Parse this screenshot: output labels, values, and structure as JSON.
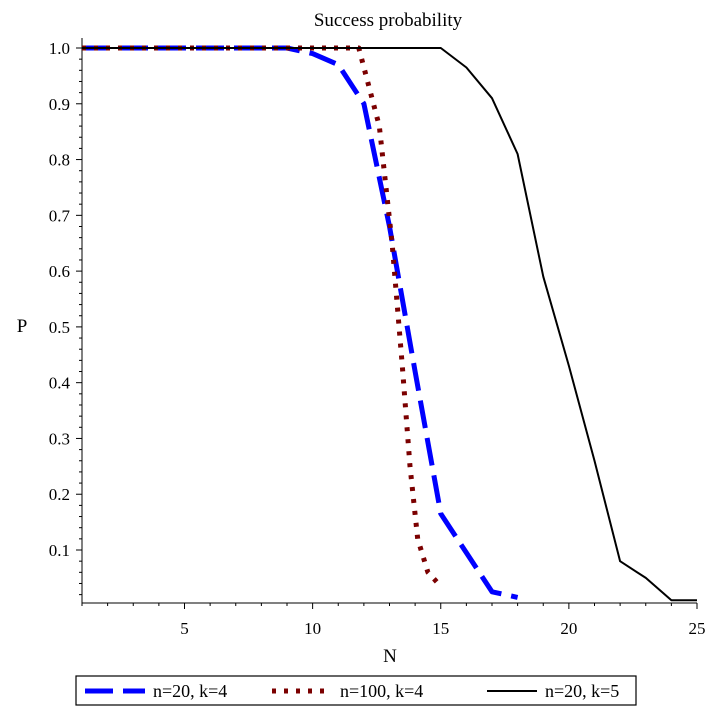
{
  "chart_data": {
    "type": "line",
    "title": "Success probability",
    "xlabel": "N",
    "ylabel": "P",
    "xlim": [
      1,
      25
    ],
    "ylim": [
      0.0,
      1.0
    ],
    "x_ticks": [
      5,
      10,
      15,
      20,
      25
    ],
    "y_ticks": [
      0.1,
      0.2,
      0.3,
      0.4,
      0.5,
      0.6,
      0.7,
      0.8,
      0.9,
      1.0
    ],
    "y_tick_labels": [
      "0.1",
      "0.2",
      "0.3",
      "0.4",
      "0.5",
      "0.6",
      "0.7",
      "0.8",
      "0.9",
      "1.0"
    ],
    "grid": false,
    "legend_position": "bottom",
    "series": [
      {
        "name": "n=20, k=4",
        "color": "#0000ff",
        "style": "dashed",
        "points": [
          [
            1,
            1.0
          ],
          [
            2,
            1.0
          ],
          [
            3,
            1.0
          ],
          [
            4,
            1.0
          ],
          [
            5,
            1.0
          ],
          [
            6,
            1.0
          ],
          [
            7,
            1.0
          ],
          [
            8,
            1.0
          ],
          [
            9,
            1.0
          ],
          [
            10,
            0.99
          ],
          [
            11,
            0.97
          ],
          [
            12,
            0.9
          ],
          [
            13,
            0.68
          ],
          [
            14,
            0.42
          ],
          [
            15,
            0.165
          ],
          [
            16,
            0.095
          ],
          [
            17,
            0.025
          ],
          [
            18,
            0.015
          ]
        ]
      },
      {
        "name": "n=100, k=4",
        "color": "#7b0000",
        "style": "dotted",
        "points": [
          [
            1,
            1.0
          ],
          [
            2,
            1.0
          ],
          [
            3,
            1.0
          ],
          [
            4,
            1.0
          ],
          [
            5,
            1.0
          ],
          [
            6,
            1.0
          ],
          [
            7,
            1.0
          ],
          [
            8,
            1.0
          ],
          [
            9,
            1.0
          ],
          [
            10,
            1.0
          ],
          [
            11,
            1.0
          ],
          [
            11.8,
            1.0
          ],
          [
            12.6,
            0.86
          ],
          [
            13.1,
            0.65
          ],
          [
            13.5,
            0.43
          ],
          [
            13.8,
            0.25
          ],
          [
            14.1,
            0.12
          ],
          [
            14.5,
            0.06
          ],
          [
            15,
            0.035
          ]
        ]
      },
      {
        "name": "n=20, k=5",
        "color": "#000000",
        "style": "solid",
        "points": [
          [
            1,
            1.0
          ],
          [
            2,
            1.0
          ],
          [
            3,
            1.0
          ],
          [
            4,
            1.0
          ],
          [
            5,
            1.0
          ],
          [
            6,
            1.0
          ],
          [
            7,
            1.0
          ],
          [
            8,
            1.0
          ],
          [
            9,
            1.0
          ],
          [
            10,
            1.0
          ],
          [
            11,
            1.0
          ],
          [
            12,
            1.0
          ],
          [
            13,
            1.0
          ],
          [
            14,
            1.0
          ],
          [
            15,
            1.0
          ],
          [
            16,
            0.965
          ],
          [
            17,
            0.91
          ],
          [
            18,
            0.81
          ],
          [
            19,
            0.59
          ],
          [
            20,
            0.43
          ],
          [
            21,
            0.26
          ],
          [
            22,
            0.08
          ],
          [
            23,
            0.05
          ],
          [
            24,
            0.01
          ],
          [
            25,
            0.01
          ]
        ]
      }
    ]
  }
}
